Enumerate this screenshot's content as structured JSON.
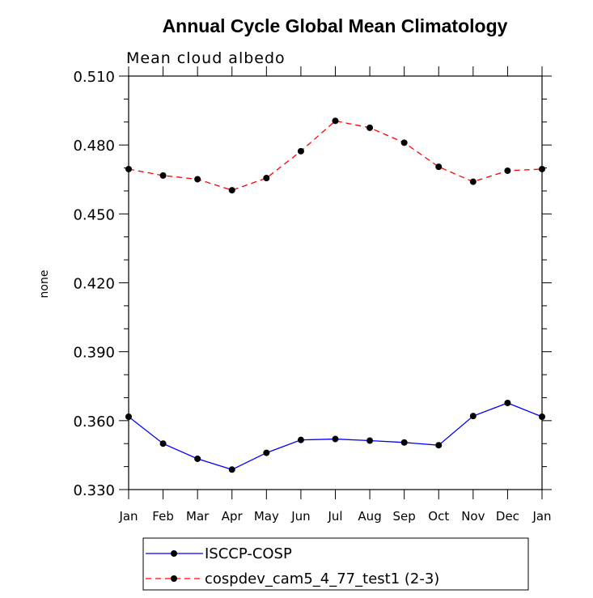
{
  "chart_data": {
    "type": "line",
    "title": "Annual Cycle Global Mean Climatology",
    "subtitle": "Mean cloud albedo",
    "xlabel": "",
    "ylabel": "none",
    "categories": [
      "Jan",
      "Feb",
      "Mar",
      "Apr",
      "May",
      "Jun",
      "Jul",
      "Aug",
      "Sep",
      "Oct",
      "Nov",
      "Dec",
      "Jan"
    ],
    "ylim": [
      0.33,
      0.51
    ],
    "yticks": [
      "0.330",
      "0.360",
      "0.390",
      "0.420",
      "0.450",
      "0.480",
      "0.510"
    ],
    "grid": false,
    "legend_position": "bottom",
    "series": [
      {
        "name": "ISCCP-COSP",
        "color": "#0000ff",
        "dash": "solid",
        "values": [
          0.3617,
          0.35,
          0.3434,
          0.3387,
          0.346,
          0.3516,
          0.352,
          0.3513,
          0.3505,
          0.3493,
          0.362,
          0.3677,
          0.3617
        ]
      },
      {
        "name": "cospdev_cam5_4_77_test1 (2-3)",
        "color": "#ff0000",
        "dash": "dashed",
        "values": [
          0.4695,
          0.4667,
          0.4651,
          0.4603,
          0.4656,
          0.4773,
          0.4905,
          0.4875,
          0.481,
          0.4705,
          0.464,
          0.4688,
          0.4695
        ]
      }
    ]
  }
}
